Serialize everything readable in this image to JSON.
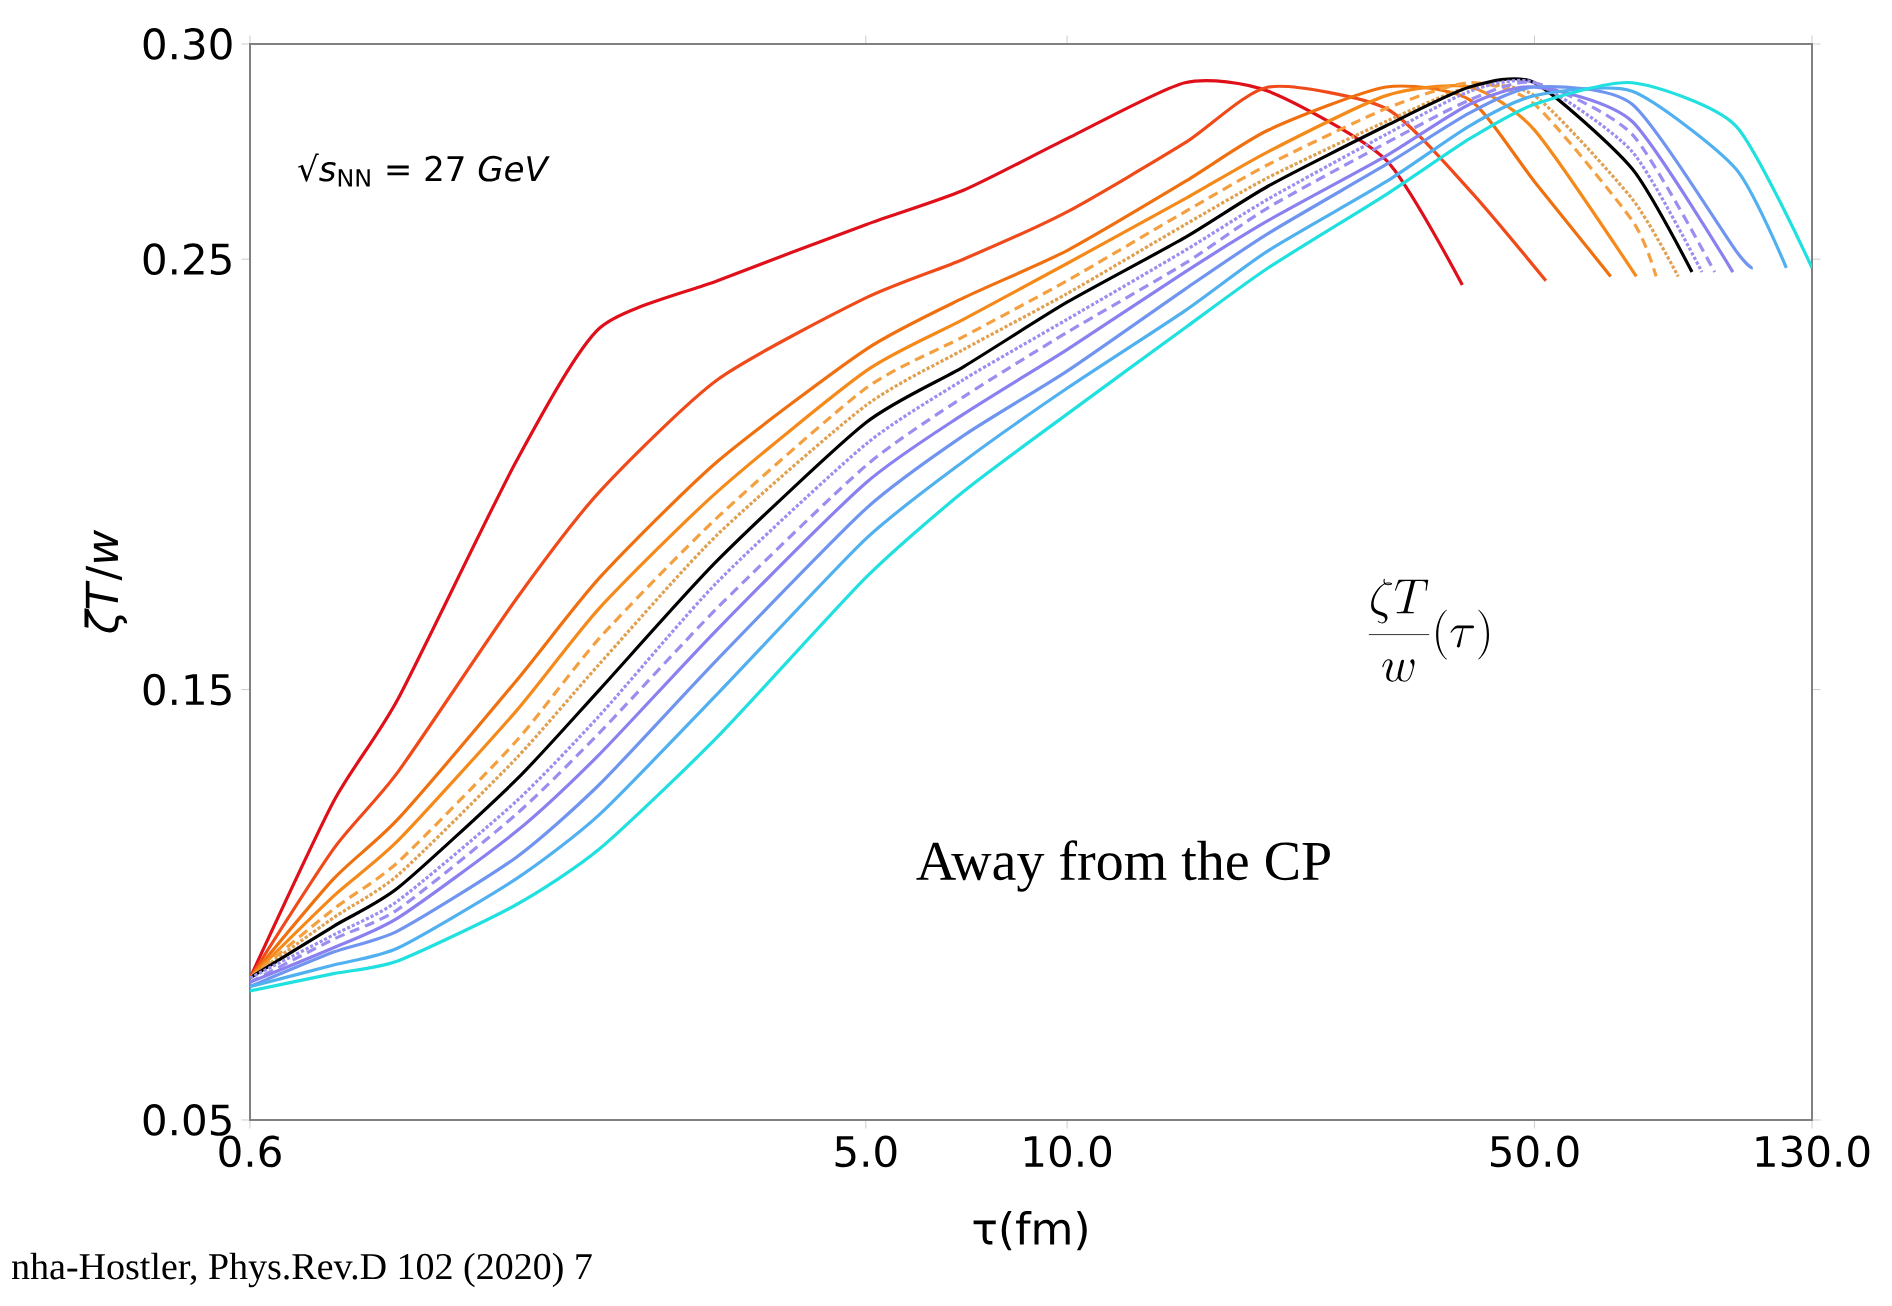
{
  "chart_data": {
    "type": "line",
    "xlabel": "τ(fm)",
    "ylabel": "*ζT*/*w*",
    "log": "x",
    "xlim": [
      0.6,
      130
    ],
    "ylim": [
      0.05,
      0.3
    ],
    "xticks": [
      0.6,
      {
        "value": 5,
        "label": "5.0"
      },
      {
        "value": 10,
        "label": "10.0"
      },
      {
        "value": 50,
        "label": "50.0"
      },
      {
        "value": 130,
        "label": "130.0"
      }
    ],
    "yticks": [
      0.05,
      0.15,
      0.25,
      {
        "value": 0.3,
        "label": "0.30"
      }
    ],
    "annotations": [
      "√*s*$_{NN}$ = 27 *GeV*",
      "\\frac{\\zeta T}{w}(\\tau)",
      "Away from the CP",
      "nha-Hostler, Phys.Rev.D 102 (2020) 7"
    ],
    "series": [
      {
        "color": "#e0101a",
        "line_style": "solid",
        "x": [
          0.6,
          0.8,
          1,
          1.5,
          2,
          3,
          5,
          7,
          10,
          15,
          20,
          30,
          39
        ],
        "values": [
          0.083,
          0.124,
          0.148,
          0.203,
          0.234,
          0.245,
          0.258,
          0.266,
          0.278,
          0.291,
          0.289,
          0.273,
          0.244
        ]
      },
      {
        "color": "#f04a1a",
        "line_style": "solid",
        "x": [
          0.6,
          0.8,
          1,
          1.5,
          2,
          3,
          5,
          7,
          10,
          15,
          20,
          30,
          40,
          52
        ],
        "values": [
          0.083,
          0.113,
          0.131,
          0.171,
          0.196,
          0.222,
          0.241,
          0.25,
          0.261,
          0.277,
          0.29,
          0.285,
          0.266,
          0.245
        ]
      },
      {
        "color": "#f07010",
        "line_style": "solid",
        "x": [
          0.6,
          0.8,
          1,
          1.5,
          2,
          3,
          5,
          7,
          10,
          15,
          20,
          30,
          40,
          50,
          65
        ],
        "values": [
          0.083,
          0.106,
          0.12,
          0.152,
          0.176,
          0.203,
          0.229,
          0.241,
          0.252,
          0.268,
          0.28,
          0.29,
          0.287,
          0.268,
          0.246
        ]
      },
      {
        "color": "#f58a1a",
        "line_style": "solid",
        "x": [
          0.6,
          0.8,
          1,
          1.5,
          2,
          3,
          5,
          7,
          10,
          15,
          20,
          30,
          40,
          50,
          71
        ],
        "values": [
          0.083,
          0.102,
          0.115,
          0.145,
          0.169,
          0.196,
          0.224,
          0.236,
          0.249,
          0.264,
          0.275,
          0.288,
          0.29,
          0.28,
          0.246
        ]
      },
      {
        "color": "#f5a040",
        "line_style": "dashed",
        "x": [
          0.6,
          0.8,
          1,
          1.5,
          2,
          3,
          5,
          7,
          10,
          15,
          20,
          30,
          40,
          50,
          70,
          76
        ],
        "values": [
          0.083,
          0.099,
          0.11,
          0.138,
          0.162,
          0.19,
          0.22,
          0.232,
          0.245,
          0.261,
          0.272,
          0.285,
          0.291,
          0.286,
          0.259,
          0.246
        ]
      },
      {
        "color": "#e0a050",
        "line_style": "dotted",
        "x": [
          0.6,
          0.8,
          1,
          1.5,
          2,
          3,
          5,
          7,
          10,
          15,
          20,
          30,
          40,
          50,
          70,
          82
        ],
        "values": [
          0.083,
          0.097,
          0.107,
          0.134,
          0.156,
          0.186,
          0.216,
          0.229,
          0.242,
          0.258,
          0.269,
          0.282,
          0.29,
          0.288,
          0.264,
          0.246
        ]
      },
      {
        "color": "#000000",
        "line_style": "solid",
        "x": [
          0.6,
          0.8,
          1,
          1.5,
          2,
          3,
          5,
          7,
          10,
          15,
          20,
          30,
          40,
          50,
          70,
          86
        ],
        "values": [
          0.083,
          0.095,
          0.104,
          0.129,
          0.15,
          0.18,
          0.212,
          0.225,
          0.24,
          0.255,
          0.267,
          0.281,
          0.29,
          0.291,
          0.271,
          0.247
        ]
      },
      {
        "color": "#9a8ef0",
        "line_style": "dotted",
        "x": [
          0.6,
          0.8,
          1,
          1.5,
          2,
          3,
          5,
          7,
          10,
          15,
          20,
          30,
          40,
          50,
          70,
          89
        ],
        "values": [
          0.083,
          0.093,
          0.101,
          0.124,
          0.144,
          0.175,
          0.207,
          0.222,
          0.236,
          0.252,
          0.264,
          0.279,
          0.289,
          0.291,
          0.275,
          0.247
        ]
      },
      {
        "color": "#9a8ef0",
        "line_style": "dashed",
        "x": [
          0.6,
          0.8,
          1,
          1.5,
          2,
          3,
          5,
          7,
          10,
          15,
          20,
          30,
          40,
          50,
          70,
          93
        ],
        "values": [
          0.082,
          0.092,
          0.099,
          0.121,
          0.14,
          0.169,
          0.202,
          0.218,
          0.233,
          0.249,
          0.262,
          0.277,
          0.287,
          0.291,
          0.279,
          0.247
        ]
      },
      {
        "color": "#8a80f0",
        "line_style": "solid",
        "x": [
          0.6,
          0.8,
          1,
          1.5,
          2,
          3,
          5,
          7,
          10,
          15,
          20,
          30,
          40,
          50,
          70,
          99
        ],
        "values": [
          0.082,
          0.09,
          0.097,
          0.117,
          0.135,
          0.164,
          0.198,
          0.214,
          0.229,
          0.247,
          0.259,
          0.274,
          0.286,
          0.29,
          0.282,
          0.247
        ]
      },
      {
        "color": "#7095f0",
        "line_style": "solid",
        "x": [
          0.6,
          0.8,
          1,
          1.5,
          2,
          3,
          5,
          7,
          10,
          15,
          20,
          30,
          40,
          50,
          70,
          100,
          106
        ],
        "values": [
          0.081,
          0.089,
          0.094,
          0.111,
          0.128,
          0.157,
          0.192,
          0.209,
          0.224,
          0.243,
          0.256,
          0.272,
          0.284,
          0.29,
          0.286,
          0.252,
          0.248
        ]
      },
      {
        "color": "#50b0f0",
        "line_style": "solid",
        "x": [
          0.6,
          0.8,
          1,
          1.5,
          2,
          3,
          5,
          7,
          10,
          15,
          20,
          30,
          40,
          50,
          70,
          100,
          119
        ],
        "values": [
          0.081,
          0.086,
          0.09,
          0.106,
          0.121,
          0.149,
          0.185,
          0.203,
          0.22,
          0.238,
          0.252,
          0.268,
          0.281,
          0.288,
          0.289,
          0.271,
          0.248
        ]
      },
      {
        "color": "#20e0e0",
        "line_style": "solid",
        "x": [
          0.6,
          0.8,
          1,
          1.5,
          2,
          3,
          5,
          7,
          10,
          15,
          20,
          30,
          40,
          50,
          70,
          100,
          130
        ],
        "values": [
          0.08,
          0.084,
          0.087,
          0.1,
          0.113,
          0.139,
          0.176,
          0.196,
          0.214,
          0.234,
          0.248,
          0.265,
          0.278,
          0.286,
          0.291,
          0.281,
          0.248
        ]
      }
    ]
  }
}
